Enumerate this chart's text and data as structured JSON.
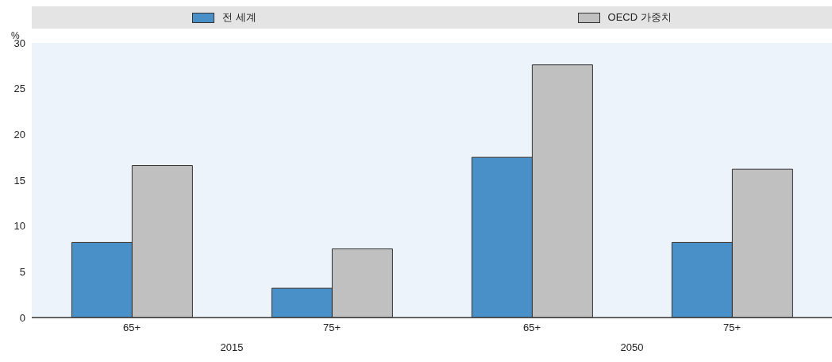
{
  "chart_data": {
    "type": "bar",
    "ylabel": "%",
    "categories": [
      "65+",
      "75+",
      "65+",
      "75+"
    ],
    "series": [
      {
        "name": "전 세계",
        "color": "#4a90c8",
        "values": [
          8.2,
          3.2,
          17.5,
          8.2
        ]
      },
      {
        "name": "OECD 가중치",
        "color": "#c0c0c0",
        "values": [
          16.6,
          7.5,
          27.6,
          16.2
        ]
      }
    ],
    "ylim": [
      0,
      30
    ],
    "yticks": [
      0,
      5,
      10,
      15,
      20,
      25,
      30
    ],
    "legend": "top",
    "annotations": [
      "2015",
      "2050"
    ]
  }
}
